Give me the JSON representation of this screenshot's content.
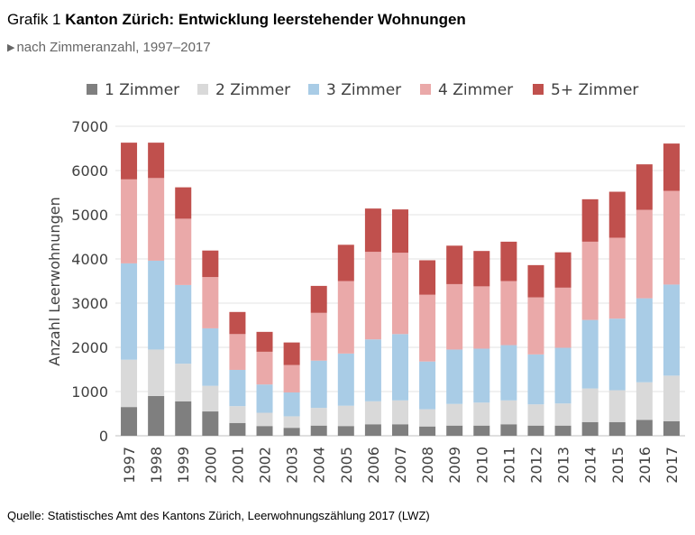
{
  "header": {
    "prefix": "Grafik 1",
    "title": "Kanton Zürich: Entwicklung leerstehender Wohnungen",
    "subtitle_arrow": "▶",
    "subtitle": "nach Zimmeranzahl, 1997–2017"
  },
  "footer": {
    "source": "Quelle: Statistisches Amt des Kantons Zürich, Leerwohnungszählung 2017 (LWZ)"
  },
  "colors": {
    "1 Zimmer": "#7f7f7f",
    "2 Zimmer": "#d9d9d9",
    "3 Zimmer": "#a9cce6",
    "4 Zimmer": "#eaa9a9",
    "5+ Zimmer": "#c0504d"
  },
  "chart_data": {
    "type": "bar",
    "stacked": true,
    "title": "",
    "xlabel": "",
    "ylabel": "Anzahl Leerwohnungen",
    "ylim": [
      0,
      7000
    ],
    "yticks": [
      0,
      1000,
      2000,
      3000,
      4000,
      5000,
      6000,
      7000
    ],
    "grid": true,
    "legend_position": "top",
    "categories": [
      "1997",
      "1998",
      "1999",
      "2000",
      "2001",
      "2002",
      "2003",
      "2004",
      "2005",
      "2006",
      "2007",
      "2008",
      "2009",
      "2010",
      "2011",
      "2012",
      "2013",
      "2014",
      "2015",
      "2016",
      "2017"
    ],
    "series": [
      {
        "name": "1 Zimmer",
        "values": [
          650,
          900,
          780,
          550,
          290,
          220,
          180,
          230,
          220,
          260,
          260,
          210,
          230,
          230,
          260,
          230,
          230,
          310,
          310,
          360,
          330
        ]
      },
      {
        "name": "2 Zimmer",
        "values": [
          1070,
          1050,
          850,
          580,
          380,
          300,
          260,
          400,
          460,
          520,
          540,
          390,
          490,
          520,
          540,
          480,
          500,
          760,
          720,
          850,
          1030
        ]
      },
      {
        "name": "3 Zimmer",
        "values": [
          2180,
          2010,
          1780,
          1300,
          820,
          640,
          540,
          1070,
          1180,
          1400,
          1500,
          1080,
          1230,
          1220,
          1250,
          1130,
          1260,
          1550,
          1620,
          1900,
          2060
        ]
      },
      {
        "name": "4 Zimmer",
        "values": [
          1900,
          1870,
          1500,
          1160,
          810,
          740,
          620,
          1080,
          1640,
          1980,
          1840,
          1510,
          1480,
          1410,
          1450,
          1290,
          1360,
          1770,
          1830,
          2000,
          2120
        ]
      },
      {
        "name": "5+ Zimmer",
        "values": [
          830,
          800,
          710,
          600,
          500,
          450,
          510,
          610,
          820,
          980,
          980,
          780,
          870,
          800,
          890,
          730,
          800,
          960,
          1040,
          1030,
          1070
        ]
      }
    ]
  }
}
